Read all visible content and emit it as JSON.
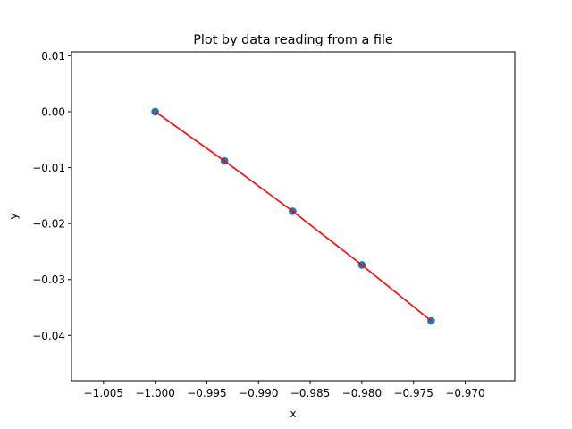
{
  "chart_data": {
    "type": "line",
    "title": "Plot by data reading from a file",
    "xlabel": "x",
    "ylabel": "y",
    "xlim": [
      -1.0081,
      -0.9652
    ],
    "ylim": [
      -0.0481,
      0.0107
    ],
    "xticks": [
      -1.005,
      -1.0,
      -0.995,
      -0.99,
      -0.985,
      -0.98,
      -0.975,
      -0.97
    ],
    "xtick_labels": [
      "−1.005",
      "−1.000",
      "−0.995",
      "−0.990",
      "−0.985",
      "−0.980",
      "−0.975",
      "−0.970"
    ],
    "yticks": [
      0.01,
      0.0,
      -0.01,
      -0.02,
      -0.03,
      -0.04
    ],
    "ytick_labels": [
      "0.01",
      "0.00",
      "−0.01",
      "−0.02",
      "−0.03",
      "−0.04"
    ],
    "grid": false,
    "series": [
      {
        "kind": "scatter",
        "color": "#1f77b4",
        "x": [
          -1.0,
          -0.9933,
          -0.9867,
          -0.98,
          -0.9733
        ],
        "y": [
          0.0,
          -0.0088,
          -0.0178,
          -0.0274,
          -0.0374
        ]
      },
      {
        "kind": "line",
        "color": "#ff0000",
        "x": [
          -1.0,
          -0.9933,
          -0.9867,
          -0.98,
          -0.9733
        ],
        "y": [
          0.0,
          -0.0088,
          -0.0178,
          -0.0274,
          -0.0374
        ]
      }
    ]
  }
}
